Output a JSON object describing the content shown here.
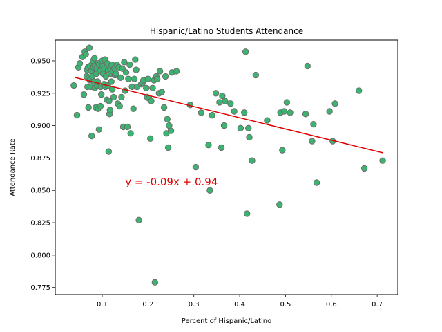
{
  "chart_data": {
    "type": "scatter",
    "title": "Hispanic/Latino Students Attendance",
    "xlabel": "Percent of Hispanic/Latino",
    "ylabel": "Attendance Rate",
    "xlim": [
      -0.0025,
      0.745
    ],
    "ylim": [
      0.7695,
      0.966
    ],
    "xticks": [
      0.1,
      0.2,
      0.3,
      0.4,
      0.5,
      0.6,
      0.7
    ],
    "xtick_labels": [
      "0.1",
      "0.2",
      "0.3",
      "0.4",
      "0.5",
      "0.6",
      "0.7"
    ],
    "yticks": [
      0.775,
      0.8,
      0.825,
      0.85,
      0.875,
      0.9,
      0.925,
      0.95
    ],
    "ytick_labels": [
      "0.775",
      "0.800",
      "0.825",
      "0.850",
      "0.875",
      "0.900",
      "0.925",
      "0.950"
    ],
    "grid": false,
    "marker_color": "#3cb371",
    "marker_edge_color": "#6b6b6b",
    "regression": {
      "slope": -0.0866,
      "intercept": 0.9407,
      "x_range": [
        0.04,
        0.713
      ],
      "color": "#e00000",
      "annotation": "y = -0.09x + 0.94",
      "annotation_x": 0.15,
      "annotation_y": 0.854
    },
    "points": [
      [
        0.038,
        0.931
      ],
      [
        0.045,
        0.908
      ],
      [
        0.048,
        0.945
      ],
      [
        0.051,
        0.948
      ],
      [
        0.057,
        0.953
      ],
      [
        0.06,
        0.924
      ],
      [
        0.062,
        0.957
      ],
      [
        0.064,
        0.955
      ],
      [
        0.066,
        0.938
      ],
      [
        0.067,
        0.943
      ],
      [
        0.068,
        0.93
      ],
      [
        0.069,
        0.945
      ],
      [
        0.07,
        0.914
      ],
      [
        0.071,
        0.937
      ],
      [
        0.072,
        0.96
      ],
      [
        0.073,
        0.935
      ],
      [
        0.074,
        0.946
      ],
      [
        0.075,
        0.93
      ],
      [
        0.076,
        0.942
      ],
      [
        0.077,
        0.892
      ],
      [
        0.078,
        0.938
      ],
      [
        0.079,
        0.948
      ],
      [
        0.08,
        0.95
      ],
      [
        0.081,
        0.945
      ],
      [
        0.082,
        0.934
      ],
      [
        0.083,
        0.952
      ],
      [
        0.084,
        0.929
      ],
      [
        0.085,
        0.946
      ],
      [
        0.086,
        0.914
      ],
      [
        0.087,
        0.94
      ],
      [
        0.088,
        0.944
      ],
      [
        0.089,
        0.931
      ],
      [
        0.09,
        0.934
      ],
      [
        0.091,
        0.913
      ],
      [
        0.092,
        0.948
      ],
      [
        0.093,
        0.897
      ],
      [
        0.094,
        0.947
      ],
      [
        0.095,
        0.942
      ],
      [
        0.096,
        0.915
      ],
      [
        0.097,
        0.93
      ],
      [
        0.098,
        0.924
      ],
      [
        0.1,
        0.95
      ],
      [
        0.101,
        0.946
      ],
      [
        0.102,
        0.94
      ],
      [
        0.104,
        0.932
      ],
      [
        0.105,
        0.944
      ],
      [
        0.106,
        0.951
      ],
      [
        0.107,
        0.93
      ],
      [
        0.108,
        0.938
      ],
      [
        0.11,
        0.92
      ],
      [
        0.111,
        0.948
      ],
      [
        0.112,
        0.931
      ],
      [
        0.113,
        0.943
      ],
      [
        0.114,
        0.88
      ],
      [
        0.115,
        0.919
      ],
      [
        0.116,
        0.909
      ],
      [
        0.117,
        0.912
      ],
      [
        0.118,
        0.944
      ],
      [
        0.119,
        0.94
      ],
      [
        0.12,
        0.934
      ],
      [
        0.121,
        0.947
      ],
      [
        0.122,
        0.928
      ],
      [
        0.123,
        0.942
      ],
      [
        0.125,
        0.922
      ],
      [
        0.127,
        0.944
      ],
      [
        0.128,
        0.939
      ],
      [
        0.13,
        0.94
      ],
      [
        0.132,
        0.947
      ],
      [
        0.134,
        0.917
      ],
      [
        0.136,
        0.945
      ],
      [
        0.138,
        0.915
      ],
      [
        0.14,
        0.937
      ],
      [
        0.142,
        0.922
      ],
      [
        0.144,
        0.944
      ],
      [
        0.146,
        0.899
      ],
      [
        0.148,
        0.949
      ],
      [
        0.15,
        0.927
      ],
      [
        0.152,
        0.941
      ],
      [
        0.155,
        0.899
      ],
      [
        0.157,
        0.936
      ],
      [
        0.16,
        0.947
      ],
      [
        0.162,
        0.894
      ],
      [
        0.165,
        0.93
      ],
      [
        0.168,
        0.913
      ],
      [
        0.17,
        0.936
      ],
      [
        0.172,
        0.951
      ],
      [
        0.174,
        0.943
      ],
      [
        0.176,
        0.93
      ],
      [
        0.18,
        0.827
      ],
      [
        0.185,
        0.932
      ],
      [
        0.188,
        0.933
      ],
      [
        0.19,
        0.935
      ],
      [
        0.196,
        0.929
      ],
      [
        0.198,
        0.922
      ],
      [
        0.2,
        0.936
      ],
      [
        0.202,
        0.921
      ],
      [
        0.205,
        0.89
      ],
      [
        0.207,
        0.919
      ],
      [
        0.21,
        0.929
      ],
      [
        0.213,
        0.935
      ],
      [
        0.215,
        0.779
      ],
      [
        0.218,
        0.938
      ],
      [
        0.22,
        0.936
      ],
      [
        0.224,
        0.925
      ],
      [
        0.226,
        0.942
      ],
      [
        0.23,
        0.926
      ],
      [
        0.235,
        0.914
      ],
      [
        0.238,
        0.938
      ],
      [
        0.24,
        0.894
      ],
      [
        0.242,
        0.905
      ],
      [
        0.244,
        0.883
      ],
      [
        0.246,
        0.9
      ],
      [
        0.25,
        0.896
      ],
      [
        0.252,
        0.941
      ],
      [
        0.262,
        0.942
      ],
      [
        0.292,
        0.916
      ],
      [
        0.304,
        0.868
      ],
      [
        0.316,
        0.91
      ],
      [
        0.332,
        0.885
      ],
      [
        0.335,
        0.85
      ],
      [
        0.34,
        0.908
      ],
      [
        0.348,
        0.925
      ],
      [
        0.356,
        0.918
      ],
      [
        0.36,
        0.883
      ],
      [
        0.362,
        0.923
      ],
      [
        0.366,
        0.9
      ],
      [
        0.368,
        0.919
      ],
      [
        0.38,
        0.917
      ],
      [
        0.388,
        0.911
      ],
      [
        0.402,
        0.898
      ],
      [
        0.41,
        0.91
      ],
      [
        0.413,
        0.957
      ],
      [
        0.416,
        0.832
      ],
      [
        0.419,
        0.898
      ],
      [
        0.421,
        0.891
      ],
      [
        0.427,
        0.873
      ],
      [
        0.435,
        0.939
      ],
      [
        0.46,
        0.904
      ],
      [
        0.487,
        0.839
      ],
      [
        0.489,
        0.91
      ],
      [
        0.493,
        0.881
      ],
      [
        0.497,
        0.911
      ],
      [
        0.503,
        0.918
      ],
      [
        0.51,
        0.91
      ],
      [
        0.544,
        0.909
      ],
      [
        0.548,
        0.946
      ],
      [
        0.558,
        0.888
      ],
      [
        0.561,
        0.901
      ],
      [
        0.568,
        0.856
      ],
      [
        0.596,
        0.911
      ],
      [
        0.603,
        0.888
      ],
      [
        0.608,
        0.917
      ],
      [
        0.66,
        0.927
      ],
      [
        0.672,
        0.867
      ],
      [
        0.712,
        0.873
      ]
    ]
  }
}
